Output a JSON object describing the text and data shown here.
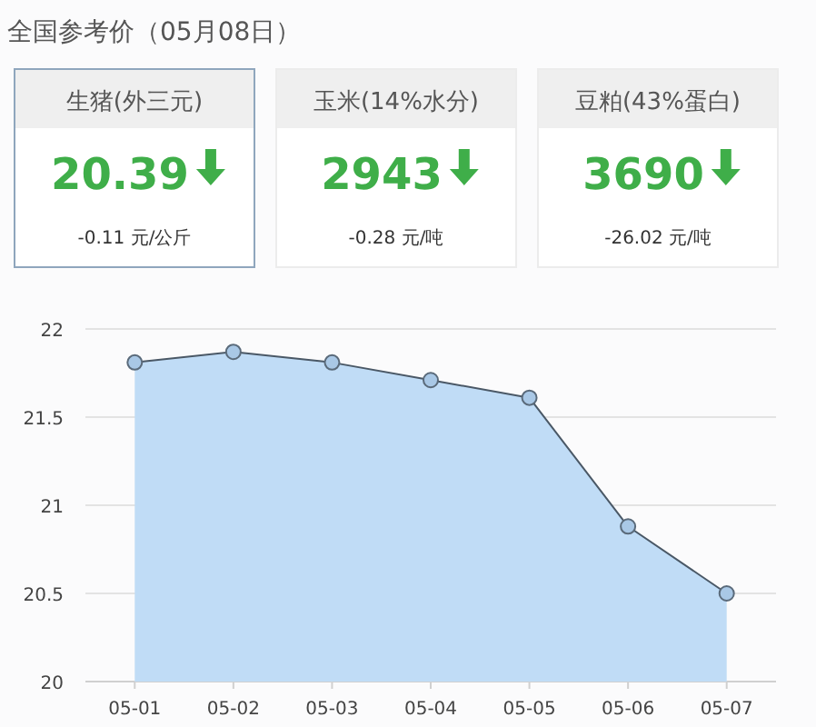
{
  "chart_data": [
    {
      "type": "other",
      "title": "全国参考价（05月08日）"
    },
    {
      "type": "other",
      "title": "生猪(外三元)",
      "annotations": [
        "20.39",
        "-0.11 元/公斤"
      ]
    },
    {
      "type": "other",
      "title": "玉米(14%水分)",
      "annotations": [
        "2943",
        "-0.28 元/吨"
      ]
    },
    {
      "type": "other",
      "title": "豆粕(43%蛋白)",
      "annotations": [
        "3690",
        "-26.02 元/吨"
      ]
    },
    {
      "type": "area",
      "categories": [
        "05-01",
        "05-02",
        "05-03",
        "05-04",
        "05-05",
        "05-06",
        "05-07"
      ],
      "series": [
        {
          "color": "#c0dcf6",
          "values": [
            21.81,
            21.87,
            21.81,
            21.71,
            21.61,
            20.88,
            20.5
          ]
        }
      ],
      "ylim": [
        20,
        22
      ],
      "yticks": [
        20,
        20.5,
        21,
        21.5,
        22
      ],
      "grid": "y",
      "marker": "circle",
      "line_style": "solid"
    }
  ]
}
